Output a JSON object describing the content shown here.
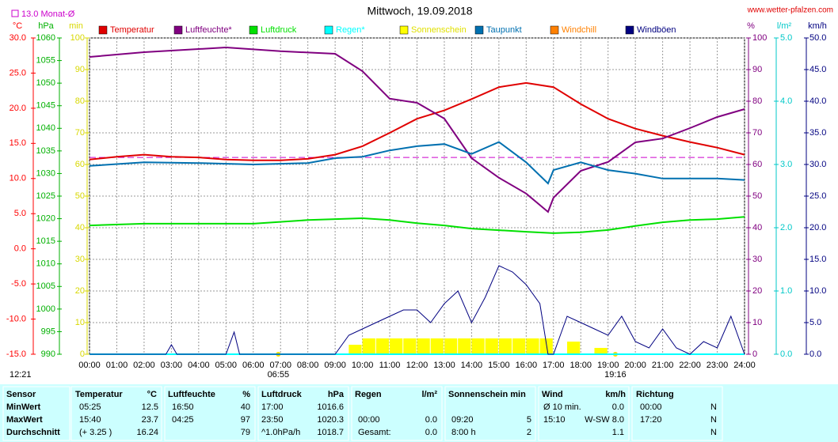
{
  "chart_data": {
    "type": "line",
    "title": "Mittwoch, 19.09.2018",
    "source": "www.wetter-pfalzen.com",
    "monthly_avg": {
      "value": 13.0,
      "label": "13.0 Monat-Ø"
    },
    "day_length": "12:21",
    "sunrise": {
      "value": 6.9167,
      "label": "06:55"
    },
    "sunset": {
      "value": 19.2667,
      "label": "19:16"
    },
    "grid": true,
    "xlim": [
      0,
      24
    ],
    "xticks": [
      {
        "value": 0,
        "label": "00:00"
      },
      {
        "value": 1,
        "label": "01:00"
      },
      {
        "value": 2,
        "label": "02:00"
      },
      {
        "value": 3,
        "label": "03:00"
      },
      {
        "value": 4,
        "label": "04:00"
      },
      {
        "value": 5,
        "label": "05:00"
      },
      {
        "value": 6,
        "label": "06:00"
      },
      {
        "value": 7,
        "label": "07:00"
      },
      {
        "value": 8,
        "label": "08:00"
      },
      {
        "value": 9,
        "label": "09:00"
      },
      {
        "value": 10,
        "label": "10:00"
      },
      {
        "value": 11,
        "label": "11:00"
      },
      {
        "value": 12,
        "label": "12:00"
      },
      {
        "value": 13,
        "label": "13:00"
      },
      {
        "value": 14,
        "label": "14:00"
      },
      {
        "value": 15,
        "label": "15:00"
      },
      {
        "value": 16,
        "label": "16:00"
      },
      {
        "value": 17,
        "label": "17:00"
      },
      {
        "value": 18,
        "label": "18:00"
      },
      {
        "value": 19,
        "label": "19:00"
      },
      {
        "value": 20,
        "label": "20:00"
      },
      {
        "value": 21,
        "label": "21:00"
      },
      {
        "value": 22,
        "label": "22:00"
      },
      {
        "value": 23,
        "label": "23:00"
      },
      {
        "value": 24,
        "label": "24:00"
      }
    ],
    "axes": [
      {
        "label": "°C",
        "color": "#ff0000",
        "lim": [
          -15,
          30
        ],
        "ticks": [
          {
            "value": 30,
            "label": "30.0"
          },
          {
            "value": 25,
            "label": "25.0"
          },
          {
            "value": 20,
            "label": "20.0"
          },
          {
            "value": 15,
            "label": "15.0"
          },
          {
            "value": 10,
            "label": "10.0"
          },
          {
            "value": 5,
            "label": "5.0"
          },
          {
            "value": 0,
            "label": "0.0"
          },
          {
            "value": -5,
            "label": "-5.0"
          },
          {
            "value": -10,
            "label": "-10.0"
          },
          {
            "value": -15,
            "label": "-15.0"
          }
        ]
      },
      {
        "label": "hPa",
        "color": "#00b000",
        "lim": [
          990,
          1060
        ],
        "ticks": [
          1060,
          1055,
          1050,
          1045,
          1040,
          1035,
          1030,
          1025,
          1020,
          1015,
          1010,
          1005,
          1000,
          995,
          990
        ]
      },
      {
        "label": "min",
        "color": "#d8d800",
        "lim": [
          0,
          100
        ],
        "ticks": [
          100,
          90,
          80,
          70,
          60,
          50,
          40,
          30,
          20,
          10,
          0
        ]
      },
      {
        "label": "%",
        "color": "#800080",
        "lim": [
          0,
          100
        ],
        "ticks": [
          100,
          90,
          80,
          70,
          60,
          50,
          40,
          30,
          20,
          10,
          0
        ]
      },
      {
        "label": "l/m²",
        "color": "#00c8c8",
        "lim": [
          0,
          5
        ],
        "ticks": [
          {
            "value": 5,
            "label": "5.0"
          },
          {
            "value": 4,
            "label": "4.0"
          },
          {
            "value": 3,
            "label": "3.0"
          },
          {
            "value": 2,
            "label": "2.0"
          },
          {
            "value": 1,
            "label": "1.0"
          },
          {
            "value": 0,
            "label": "0.0"
          }
        ]
      },
      {
        "label": "km/h",
        "color": "#000080",
        "lim": [
          0,
          50
        ],
        "ticks": [
          {
            "value": 50,
            "label": "50.0"
          },
          {
            "value": 45,
            "label": "45.0"
          },
          {
            "value": 40,
            "label": "40.0"
          },
          {
            "value": 35,
            "label": "35.0"
          },
          {
            "value": 30,
            "label": "30.0"
          },
          {
            "value": 25,
            "label": "25.0"
          },
          {
            "value": 20,
            "label": "20.0"
          },
          {
            "value": 15,
            "label": "15.0"
          },
          {
            "value": 10,
            "label": "10.0"
          },
          {
            "value": 5,
            "label": "5.0"
          },
          {
            "value": 0,
            "label": "0.0"
          }
        ]
      }
    ],
    "series": [
      {
        "name": "Temperatur",
        "color": "#e00000",
        "axis": 0,
        "kind": "line",
        "x": [
          0,
          1,
          2,
          3,
          4,
          5,
          6,
          7,
          8,
          9,
          10,
          11,
          12,
          13,
          14,
          15,
          16,
          17,
          18,
          19,
          20,
          21,
          22,
          23,
          24
        ],
        "values": [
          12.7,
          13.1,
          13.4,
          13.1,
          13.0,
          12.7,
          12.6,
          12.6,
          12.8,
          13.4,
          14.6,
          16.5,
          18.5,
          19.7,
          21.3,
          23.0,
          23.6,
          23.0,
          20.6,
          18.5,
          17.1,
          16.1,
          15.2,
          14.4,
          13.4
        ]
      },
      {
        "name": "Luftfeuchte*",
        "color": "#800080",
        "axis": 3,
        "kind": "line",
        "x": [
          0,
          2,
          5,
          7,
          9,
          10,
          11,
          12,
          13,
          14,
          15,
          16,
          16.8,
          17,
          18,
          19,
          20,
          21,
          22,
          23,
          24
        ],
        "values": [
          94,
          95.5,
          97,
          95.8,
          95,
          89.5,
          80.8,
          79.5,
          74.5,
          62,
          55.8,
          50.8,
          45,
          49.5,
          58,
          60.8,
          67,
          68.2,
          71.5,
          75,
          77.5
        ]
      },
      {
        "name": "Luftdruck",
        "color": "#00e000",
        "axis": 1,
        "kind": "line",
        "x": [
          0,
          2,
          4,
          6,
          8,
          10,
          11,
          12,
          13,
          14,
          16,
          17,
          18,
          19,
          20,
          21,
          22,
          23,
          24
        ],
        "values": [
          1018.5,
          1018.9,
          1018.9,
          1018.9,
          1019.7,
          1020.1,
          1019.7,
          1019.0,
          1018.5,
          1017.8,
          1017.1,
          1016.8,
          1017.0,
          1017.5,
          1018.4,
          1019.2,
          1019.7,
          1019.9,
          1020.4
        ]
      },
      {
        "name": "Regen*",
        "color": "#00ffff",
        "axis": 4,
        "kind": "line",
        "x": [
          0,
          24
        ],
        "values": [
          0,
          0
        ]
      },
      {
        "name": "Sonnenschein",
        "color": "#ffff00",
        "axis": 2,
        "kind": "bar",
        "x": [
          9.5,
          10,
          10.5,
          11,
          11.5,
          12,
          12.5,
          13,
          13.5,
          14,
          14.5,
          15,
          15.5,
          16,
          16.5,
          17.5,
          18.5
        ],
        "values": [
          3,
          5,
          5,
          5,
          5,
          5,
          5,
          5,
          5,
          5,
          5,
          5,
          5,
          5,
          5,
          4,
          2
        ]
      },
      {
        "name": "Taupunkt",
        "color": "#0070b0",
        "axis": 0,
        "kind": "line",
        "x": [
          0,
          2,
          4,
          6,
          8,
          9,
          10,
          11,
          12,
          13,
          14,
          15,
          16,
          16.8,
          17,
          18,
          19,
          20,
          21,
          22,
          23,
          24
        ],
        "values": [
          11.8,
          12.3,
          12.2,
          12.0,
          12.2,
          12.9,
          13.1,
          14.0,
          14.6,
          14.9,
          13.5,
          15.2,
          12.3,
          9.3,
          11.2,
          12.3,
          11.2,
          10.7,
          10.0,
          10.0,
          10.0,
          9.8
        ]
      },
      {
        "name": "Windchill",
        "color": "#ff8000"
      },
      {
        "name": "Windböen",
        "color": "#000080",
        "axis": 5,
        "kind": "line",
        "x": [
          0,
          2.8,
          3,
          3.2,
          5,
          5.3,
          5.5,
          9,
          9.5,
          10,
          10.5,
          11,
          11.5,
          12,
          12.5,
          13,
          13.5,
          14,
          14.5,
          15,
          15.5,
          16,
          16.5,
          16.8,
          17,
          17.5,
          18,
          18.5,
          19,
          19.5,
          20,
          20.5,
          21,
          21.5,
          22,
          22.5,
          23,
          23.5,
          24
        ],
        "values": [
          0,
          0,
          1.5,
          0,
          0,
          3.5,
          0,
          0,
          3,
          4,
          5,
          6,
          7,
          7,
          5,
          8,
          10,
          5,
          9,
          14,
          13,
          11,
          8,
          0,
          0,
          6,
          5,
          4,
          3,
          6,
          2,
          1,
          4,
          1,
          0,
          2,
          1,
          6,
          0
        ]
      }
    ]
  },
  "table": {
    "header": [
      "Sensor",
      "Temperatur",
      "°C",
      "Luftfeuchte",
      "%",
      "Luftdruck",
      "hPa",
      "Regen",
      "l/m²",
      "Sonnenschein min",
      "Wind",
      "km/h",
      "Richtung"
    ],
    "rows": [
      [
        "MinWert",
        "05:25",
        "12.5",
        "16:50",
        "40",
        "17:00",
        "1016.6",
        null,
        null,
        null,
        null,
        "Ø 10 min.",
        "0.0",
        "00:00",
        "N"
      ],
      [
        "MaxWert",
        "15:40",
        "23.7",
        "04:25",
        "97",
        "23:50",
        "1020.3",
        "00:00",
        "0.0",
        "09:20",
        "5",
        "15:10",
        "W-SW 8.0",
        "17:20",
        "N"
      ],
      [
        "Durchschnitt",
        "(+ 3.25 )",
        "16.24",
        null,
        "79",
        "^1.0hPa/h",
        "1018.7",
        "Gesamt:",
        "0.0",
        "8:00 h",
        "2",
        null,
        "1.1",
        null,
        "N"
      ]
    ]
  }
}
